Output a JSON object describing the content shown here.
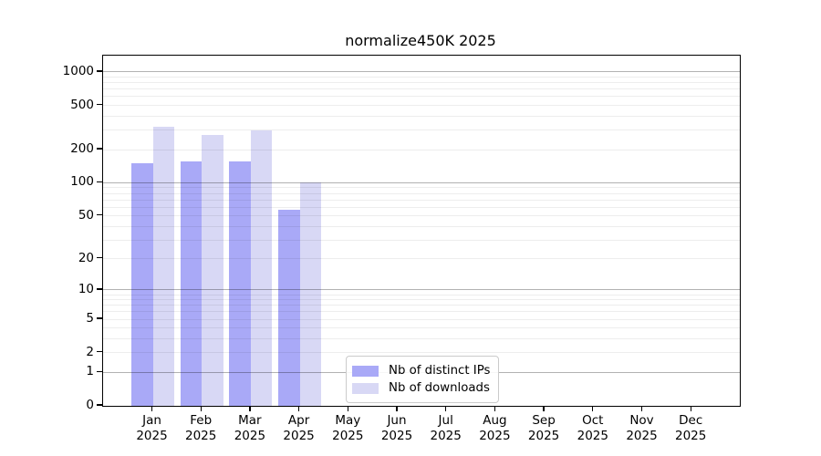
{
  "title": "normalize450K 2025",
  "chart_data": {
    "type": "bar",
    "title": "normalize450K 2025",
    "categories": [
      "Jan",
      "Feb",
      "Mar",
      "Apr",
      "May",
      "Jun",
      "Jul",
      "Aug",
      "Sep",
      "Oct",
      "Nov",
      "Dec"
    ],
    "category_year": "2025",
    "series": [
      {
        "name": "Nb of distinct IPs",
        "color": "#a9a9f7",
        "values": [
          150,
          155,
          157,
          57,
          0,
          0,
          0,
          0,
          0,
          0,
          0,
          0
        ]
      },
      {
        "name": "Nb of downloads",
        "color": "#d8d8f5",
        "values": [
          320,
          270,
          300,
          100,
          0,
          0,
          0,
          0,
          0,
          0,
          0,
          0
        ]
      }
    ],
    "yscale": "log10(1+y)",
    "ylim": [
      0,
      1400
    ],
    "yticks": [
      0,
      1,
      2,
      5,
      10,
      20,
      50,
      100,
      200,
      500,
      1000
    ],
    "grid_major": [
      1,
      10,
      100,
      1000
    ],
    "grid_minor": [
      2,
      3,
      4,
      5,
      6,
      7,
      8,
      9,
      20,
      30,
      40,
      50,
      60,
      70,
      80,
      90,
      200,
      300,
      400,
      500,
      600,
      700,
      800,
      900
    ],
    "grid": "on",
    "legend_position": "inside-bottom-center"
  },
  "colors": {
    "background": "#ffffff",
    "axis": "#000000",
    "grid_major": "rgba(0,0,0,0.30)",
    "grid_minor": "rgba(0,0,0,0.07)",
    "ips_bar": "#a9a9f7",
    "downloads_bar": "#d8d8f5",
    "legend_border": "#cbcbcb"
  }
}
